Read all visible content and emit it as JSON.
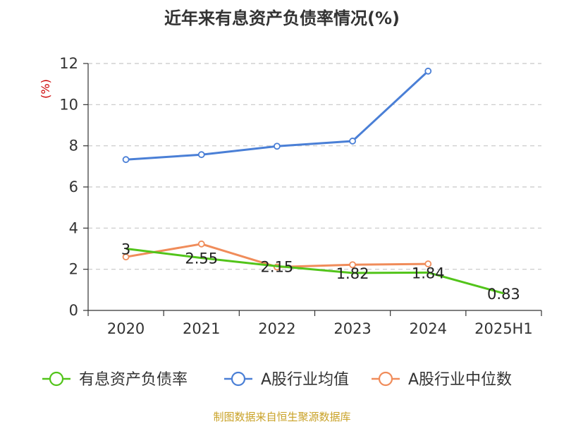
{
  "chart_data": {
    "type": "line",
    "title": "近年来有息资产负债率情况(%)",
    "ylabel": "(%)",
    "ylabel_color": "#cc0000",
    "categories": [
      "2020",
      "2021",
      "2022",
      "2023",
      "2024",
      "2025H1"
    ],
    "ylim": [
      0,
      12
    ],
    "yticks": [
      0,
      2,
      4,
      6,
      8,
      10,
      12
    ],
    "grid": true,
    "legend_position": "bottom",
    "series": [
      {
        "name": "有息资产负债率",
        "color": "#52c41a",
        "values": [
          3,
          2.55,
          2.15,
          1.82,
          1.84,
          0.83
        ],
        "labels": [
          "3",
          "2.55",
          "2.15",
          "1.82",
          "1.84",
          "0.83"
        ]
      },
      {
        "name": "A股行业均值",
        "color": "#4a7fd6",
        "values": [
          7.33,
          7.57,
          7.98,
          8.23,
          11.63,
          null
        ]
      },
      {
        "name": "A股行业中位数",
        "color": "#f08c5a",
        "values": [
          2.6,
          3.23,
          2.11,
          2.22,
          2.26,
          null
        ]
      }
    ]
  },
  "source": "制图数据来自恒生聚源数据库"
}
